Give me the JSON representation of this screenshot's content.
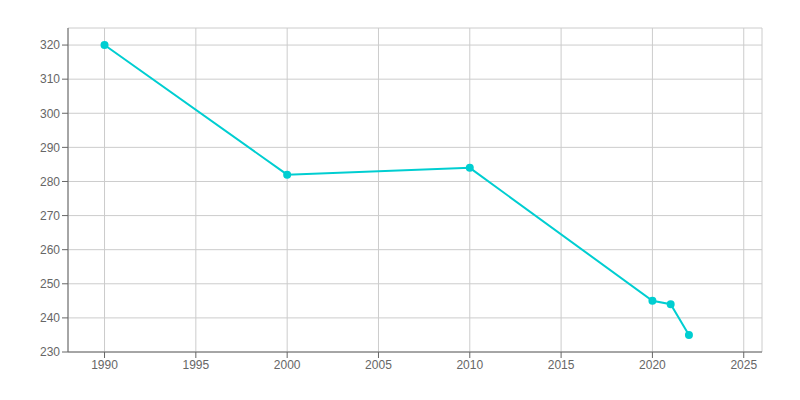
{
  "chart_data": {
    "type": "line",
    "x": [
      1990,
      2000,
      2010,
      2020,
      2021,
      2022
    ],
    "values": [
      320,
      282,
      284,
      245,
      244,
      235
    ],
    "color": "#00CED1",
    "marker": "circle",
    "xlim": [
      1988,
      2026
    ],
    "ylim": [
      230,
      325
    ],
    "xticks": [
      1990,
      1995,
      2000,
      2005,
      2010,
      2015,
      2020,
      2025
    ],
    "yticks": [
      230,
      240,
      250,
      260,
      270,
      280,
      290,
      300,
      310,
      320
    ],
    "grid": true
  }
}
